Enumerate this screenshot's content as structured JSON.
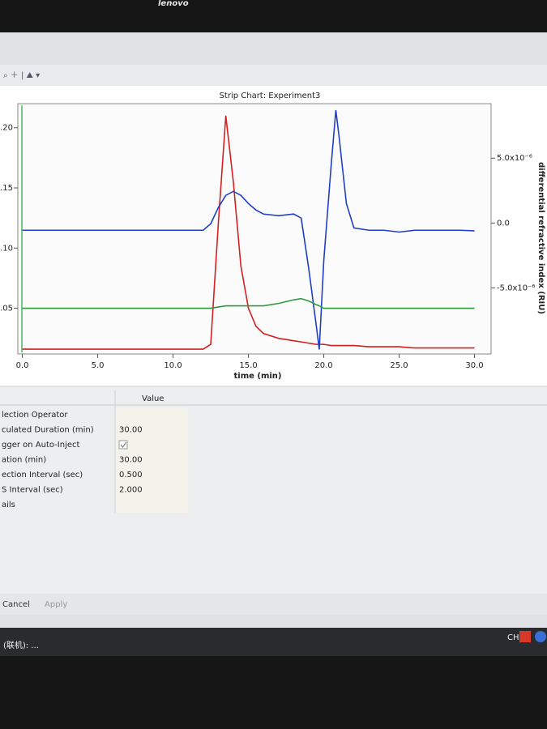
{
  "bezel_brand": "lenovo",
  "chart_data": {
    "type": "line",
    "title": "Strip Chart: Experiment3",
    "x_label": "time (min)",
    "y2_label": "differential refractive index (RIU)",
    "x": [
      0,
      2,
      4,
      6,
      8,
      10,
      12,
      12.5,
      13,
      13.5,
      14,
      14.5,
      15,
      15.5,
      16,
      17,
      18,
      18.5,
      19,
      19.5,
      19.7,
      20,
      20.5,
      20.8,
      21,
      21.5,
      22,
      23,
      24,
      25,
      26,
      27,
      28,
      29,
      30
    ],
    "series": [
      {
        "color": "#d42020",
        "values": [
          0.016,
          0.016,
          0.016,
          0.016,
          0.016,
          0.016,
          0.016,
          0.02,
          0.12,
          0.21,
          0.155,
          0.085,
          0.05,
          0.035,
          0.029,
          0.025,
          0.023,
          0.022,
          0.021,
          0.02,
          0.02,
          0.02,
          0.019,
          0.019,
          0.019,
          0.019,
          0.019,
          0.018,
          0.018,
          0.018,
          0.017,
          0.017,
          0.017,
          0.017,
          0.017
        ]
      },
      {
        "color": "#1f3fc8",
        "axis": "y2",
        "values": [
          -5.6e-07,
          -5.6e-07,
          -5.6e-07,
          -5.6e-07,
          -5.6e-07,
          -5.6e-07,
          -5.6e-07,
          -6e-08,
          1.19e-06,
          2.13e-06,
          2.44e-06,
          2.13e-06,
          1.5e-06,
          1e-06,
          6.9e-07,
          5.6e-07,
          6.9e-07,
          3.8e-07,
          -3.5e-06,
          -7.9e-06,
          -9.75e-06,
          -2.9e-06,
          4.6e-06,
          8.7e-06,
          6.8e-06,
          1.5e-06,
          -3.8e-07,
          -5.6e-07,
          -5.6e-07,
          -7e-07,
          -5.6e-07,
          -5.6e-07,
          -5.6e-07,
          -5.6e-07,
          -6e-07
        ]
      },
      {
        "color": "#2f9a3c",
        "values": [
          0.05,
          0.05,
          0.05,
          0.05,
          0.05,
          0.05,
          0.05,
          0.05,
          0.051,
          0.052,
          0.052,
          0.052,
          0.052,
          0.052,
          0.052,
          0.054,
          0.057,
          0.058,
          0.056,
          0.053,
          0.052,
          0.05,
          0.05,
          0.05,
          0.05,
          0.05,
          0.05,
          0.05,
          0.05,
          0.05,
          0.05,
          0.05,
          0.05,
          0.05,
          0.05
        ]
      }
    ],
    "xlim": [
      -0.3,
      31.1
    ],
    "xticks": [
      {
        "value": 0,
        "label": "0.0"
      },
      {
        "value": 5,
        "label": "5.0"
      },
      {
        "value": 10,
        "label": "10.0"
      },
      {
        "value": 15,
        "label": "15.0"
      },
      {
        "value": 20,
        "label": "20.0"
      },
      {
        "value": 25,
        "label": "25.0"
      },
      {
        "value": 30,
        "label": "30.0"
      }
    ],
    "ylim": [
      0.012,
      0.22
    ],
    "yticks": [
      0.05,
      {
        "value": 0.1,
        "label": "0.10"
      },
      0.15,
      {
        "value": 0.2,
        "label": "0.20"
      }
    ],
    "y2lim": [
      -1.01e-05,
      9.2e-06
    ],
    "y2ticks": [
      {
        "value": -5e-06,
        "label": "-5.0x10⁻⁶"
      },
      {
        "value": 0,
        "label": "0.0"
      },
      {
        "value": 5e-06,
        "label": "5.0x10⁻⁶"
      }
    ]
  },
  "properties": {
    "header": "Value",
    "rows": [
      {
        "name": "lection Operator"
      },
      {
        "name": "culated Duration (min)",
        "value": "30.00"
      },
      {
        "name": "gger on Auto-Inject",
        "checked": true
      },
      {
        "name": "ation (min)",
        "value": "30.00"
      },
      {
        "name": "ection Interval (sec)",
        "value": "0.500"
      },
      {
        "name": "S Interval (sec)",
        "value": "2.000"
      },
      {
        "name": "ails"
      }
    ]
  },
  "buttons": [
    "Cancel",
    "Apply"
  ],
  "taskbar": {
    "item": "(联机): ...",
    "lang": "CH"
  }
}
